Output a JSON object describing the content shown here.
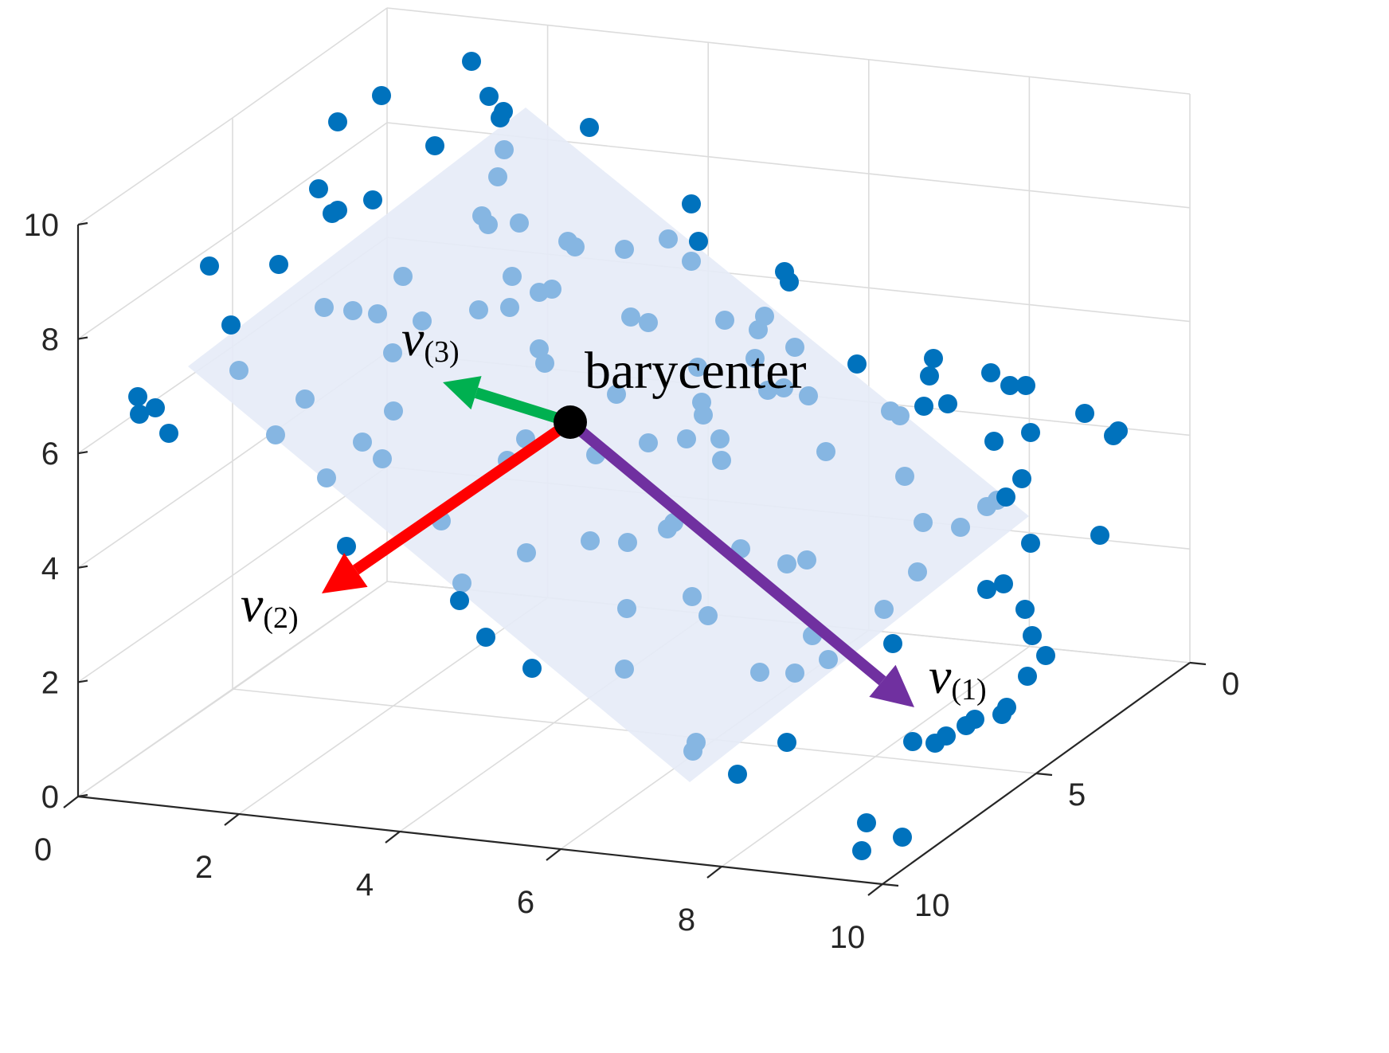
{
  "chart_data": {
    "type": "scatter",
    "projection": "3d",
    "title": "",
    "xlabel": "",
    "ylabel": "",
    "zlabel": "",
    "xlim": [
      0,
      10
    ],
    "ylim": [
      0,
      10
    ],
    "zlim": [
      0,
      10
    ],
    "x_ticks": [
      "0",
      "2",
      "4",
      "6",
      "8",
      "10"
    ],
    "y_ticks": [
      "0",
      "5",
      "10"
    ],
    "z_ticks": [
      "0",
      "2",
      "4",
      "6",
      "8",
      "10"
    ],
    "grid": true,
    "colors": {
      "points_off_plane": "#0072BD",
      "points_on_plane": "#86B6E2",
      "plane_fill": "#E6EBF7",
      "v1": "#7030A0",
      "v2": "#FF0000",
      "v3": "#00B050",
      "barycenter": "#000000"
    },
    "points_off_plane": [
      [
        592,
        77
      ],
      [
        479,
        120
      ],
      [
        614,
        121
      ],
      [
        632,
        140
      ],
      [
        628,
        148
      ],
      [
        424,
        153
      ],
      [
        740,
        160
      ],
      [
        546,
        183
      ],
      [
        400,
        237
      ],
      [
        468,
        251
      ],
      [
        868,
        256
      ],
      [
        424,
        264
      ],
      [
        417,
        268
      ],
      [
        877,
        303
      ],
      [
        263,
        334
      ],
      [
        350,
        332
      ],
      [
        985,
        341
      ],
      [
        991,
        354
      ],
      [
        290,
        408
      ],
      [
        1076,
        457
      ],
      [
        1172,
        450
      ],
      [
        1167,
        472
      ],
      [
        1244,
        468
      ],
      [
        1268,
        484
      ],
      [
        1288,
        484
      ],
      [
        173,
        498
      ],
      [
        195,
        512
      ],
      [
        175,
        520
      ],
      [
        212,
        544
      ],
      [
        1160,
        510
      ],
      [
        1190,
        507
      ],
      [
        1362,
        519
      ],
      [
        1294,
        543
      ],
      [
        1248,
        554
      ],
      [
        1398,
        547
      ],
      [
        1404,
        541
      ],
      [
        1283,
        601
      ],
      [
        1263,
        624
      ],
      [
        1381,
        672
      ],
      [
        1294,
        682
      ],
      [
        435,
        686
      ],
      [
        1260,
        733
      ],
      [
        1239,
        740
      ],
      [
        1287,
        765
      ],
      [
        577,
        754
      ],
      [
        610,
        800
      ],
      [
        1296,
        798
      ],
      [
        1121,
        808
      ],
      [
        1313,
        823
      ],
      [
        668,
        839
      ],
      [
        1290,
        849
      ],
      [
        1264,
        888
      ],
      [
        1258,
        897
      ],
      [
        1224,
        903
      ],
      [
        1213,
        911
      ],
      [
        1188,
        924
      ],
      [
        1174,
        933
      ],
      [
        1146,
        931
      ],
      [
        988,
        932
      ],
      [
        926,
        972
      ],
      [
        1088,
        1033
      ],
      [
        1133,
        1051
      ],
      [
        1082,
        1068
      ]
    ],
    "points_on_plane": [
      [
        633,
        188
      ],
      [
        625,
        222
      ],
      [
        605,
        271
      ],
      [
        613,
        282
      ],
      [
        652,
        280
      ],
      [
        713,
        303
      ],
      [
        722,
        310
      ],
      [
        784,
        313
      ],
      [
        839,
        300
      ],
      [
        868,
        328
      ],
      [
        506,
        347
      ],
      [
        643,
        347
      ],
      [
        407,
        386
      ],
      [
        443,
        390
      ],
      [
        474,
        394
      ],
      [
        530,
        403
      ],
      [
        601,
        389
      ],
      [
        640,
        386
      ],
      [
        677,
        367
      ],
      [
        693,
        363
      ],
      [
        792,
        398
      ],
      [
        814,
        405
      ],
      [
        910,
        402
      ],
      [
        952,
        414
      ],
      [
        960,
        397
      ],
      [
        998,
        436
      ],
      [
        493,
        443
      ],
      [
        677,
        438
      ],
      [
        684,
        456
      ],
      [
        876,
        461
      ],
      [
        948,
        450
      ],
      [
        300,
        465
      ],
      [
        383,
        501
      ],
      [
        494,
        516
      ],
      [
        881,
        505
      ],
      [
        883,
        521
      ],
      [
        774,
        495
      ],
      [
        964,
        490
      ],
      [
        984,
        487
      ],
      [
        1015,
        497
      ],
      [
        1118,
        516
      ],
      [
        1130,
        522
      ],
      [
        346,
        546
      ],
      [
        455,
        555
      ],
      [
        480,
        576
      ],
      [
        660,
        551
      ],
      [
        748,
        571
      ],
      [
        814,
        556
      ],
      [
        862,
        551
      ],
      [
        904,
        551
      ],
      [
        906,
        578
      ],
      [
        1037,
        567
      ],
      [
        410,
        600
      ],
      [
        637,
        578
      ],
      [
        1136,
        598
      ],
      [
        1239,
        636
      ],
      [
        1252,
        628
      ],
      [
        1206,
        662
      ],
      [
        1159,
        656
      ],
      [
        554,
        654
      ],
      [
        838,
        664
      ],
      [
        846,
        656
      ],
      [
        741,
        679
      ],
      [
        788,
        681
      ],
      [
        661,
        694
      ],
      [
        930,
        689
      ],
      [
        988,
        708
      ],
      [
        1013,
        703
      ],
      [
        1152,
        718
      ],
      [
        580,
        732
      ],
      [
        869,
        749
      ],
      [
        787,
        764
      ],
      [
        889,
        773
      ],
      [
        1110,
        765
      ],
      [
        1020,
        798
      ],
      [
        1040,
        828
      ],
      [
        784,
        840
      ],
      [
        954,
        844
      ],
      [
        998,
        845
      ],
      [
        874,
        932
      ],
      [
        870,
        943
      ]
    ],
    "barycenter": {
      "screen": [
        716,
        530
      ],
      "label": "barycenter"
    },
    "vectors": [
      {
        "name_base": "v",
        "name_sub": "(1)",
        "color": "#7030A0",
        "tip_screen": [
          1148,
          888
        ]
      },
      {
        "name_base": "v",
        "name_sub": "(2)",
        "color": "#FF0000",
        "tip_screen": [
          404,
          745
        ]
      },
      {
        "name_base": "v",
        "name_sub": "(3)",
        "color": "#00B050",
        "tip_screen": [
          556,
          480
        ]
      }
    ]
  }
}
